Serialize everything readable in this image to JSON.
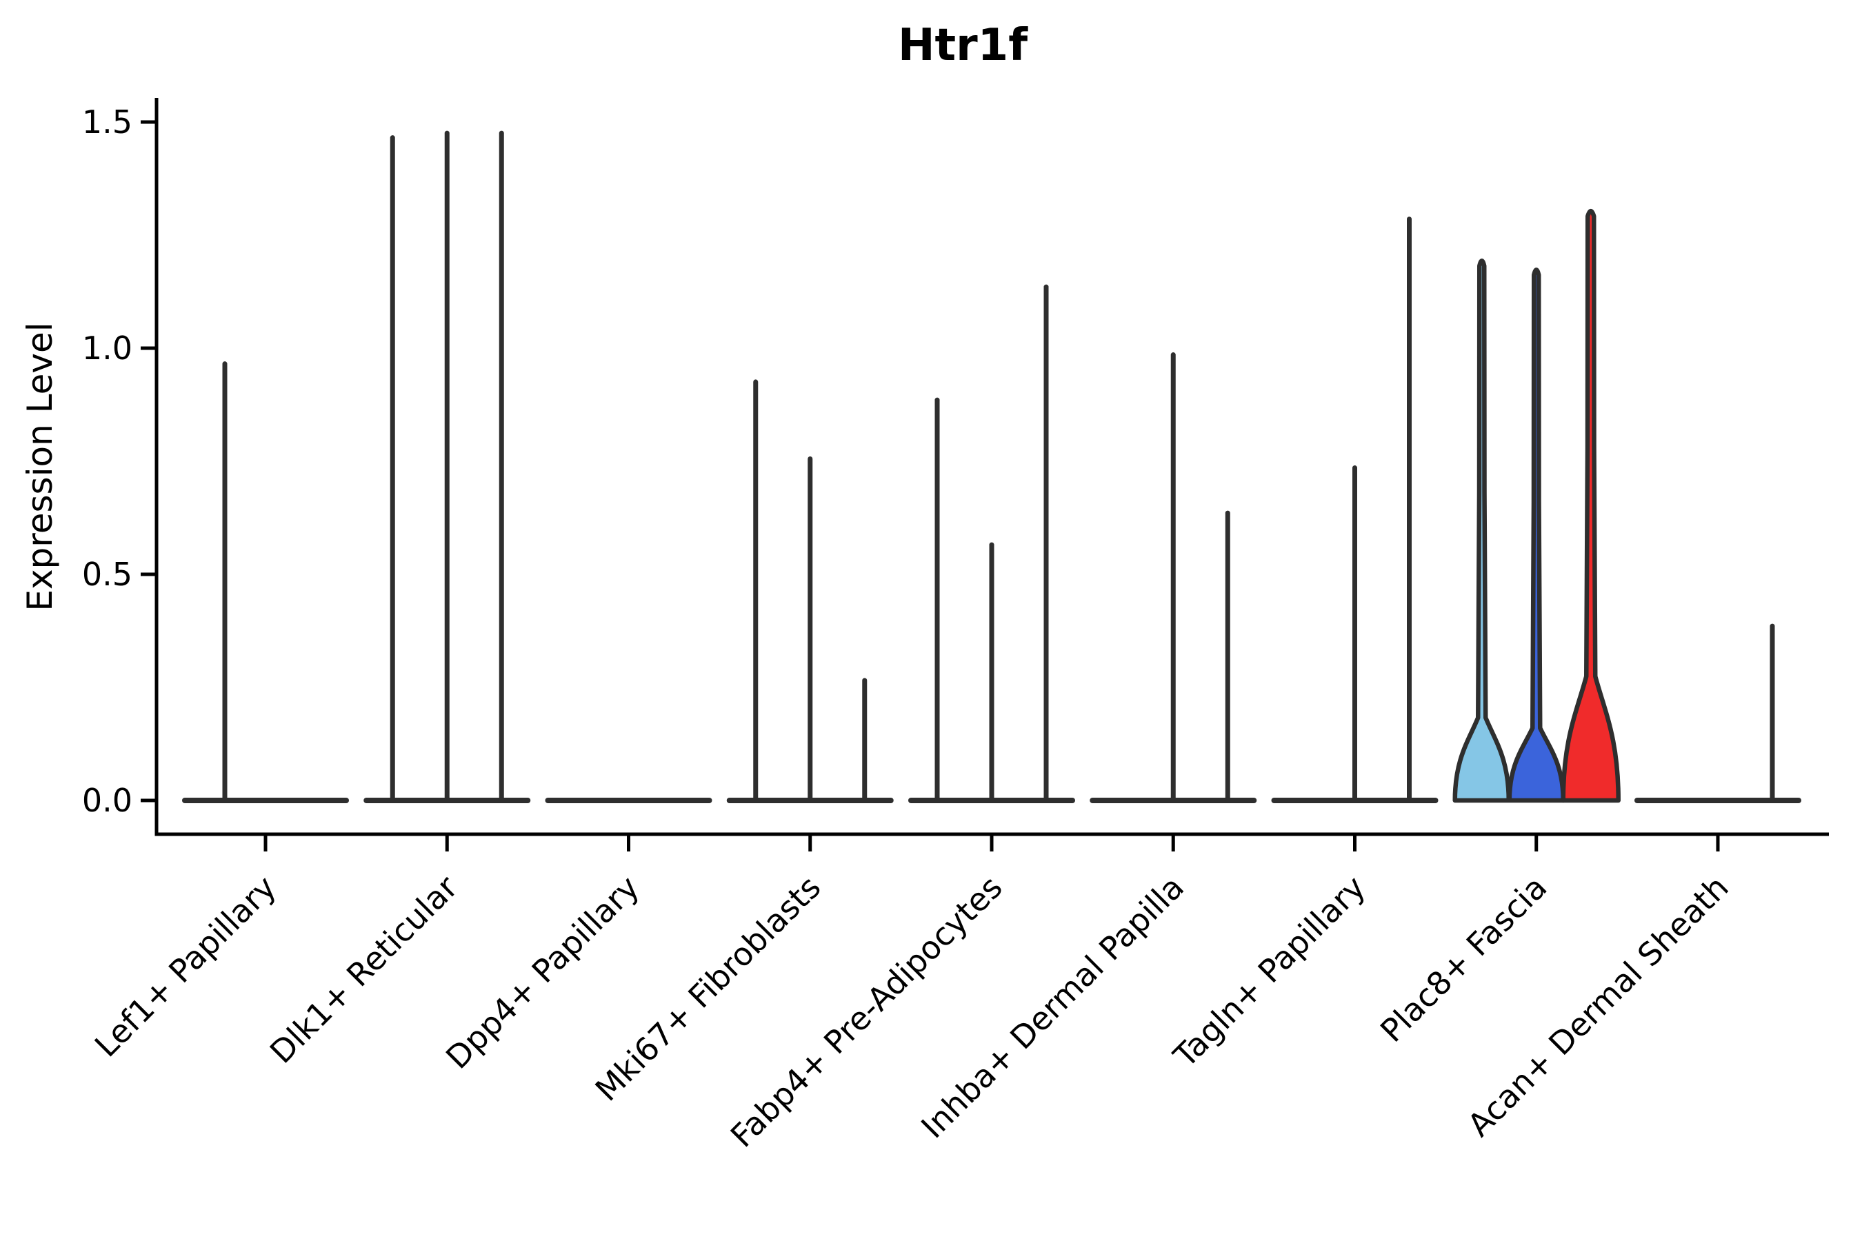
{
  "title": "Htr1f",
  "figure": {
    "background": "#ffffff",
    "axis_color": "#000000",
    "violin_outline_color": "#2e2e2e",
    "tick_label_color": "#000000"
  },
  "chart_data": {
    "type": "violin",
    "title": "Htr1f",
    "xlabel": "",
    "ylabel": "Expression Level",
    "ylim": [
      -0.07,
      1.55
    ],
    "yticks": [
      "0.0",
      "0.5",
      "1.0",
      "1.5"
    ],
    "ytick_values": [
      0.0,
      0.5,
      1.0,
      1.5
    ],
    "grid": "off",
    "legend": "none",
    "categories": [
      "Lef1+ Papillary",
      "Dlk1+ Reticular",
      "Dpp4+ Papillary",
      "Mki67+ Fibroblasts",
      "Fabp4+ Pre-Adipocytes",
      "Inhba+ Dermal Papilla",
      "Tagln+ Papillary",
      "Plac8+ Fascia",
      "Acan+ Dermal Sheath"
    ],
    "series": [
      {
        "category": "Lef1+ Papillary",
        "baseline_halfwidth": 121,
        "spikes": [
          {
            "dx": -59,
            "max_expression": 0.97
          }
        ],
        "colored_violins": []
      },
      {
        "category": "Dlk1+ Reticular",
        "baseline_halfwidth": 121,
        "spikes": [
          {
            "dx": -79,
            "max_expression": 1.47
          },
          {
            "dx": 0,
            "max_expression": 1.48
          },
          {
            "dx": 79,
            "max_expression": 1.48
          }
        ],
        "colored_violins": []
      },
      {
        "category": "Dpp4+ Papillary",
        "baseline_halfwidth": 121,
        "spikes": [],
        "colored_violins": []
      },
      {
        "category": "Mki67+ Fibroblasts",
        "baseline_halfwidth": 121,
        "spikes": [
          {
            "dx": -79,
            "max_expression": 0.93
          },
          {
            "dx": 0,
            "max_expression": 0.76
          },
          {
            "dx": 79,
            "max_expression": 0.27
          }
        ],
        "colored_violins": []
      },
      {
        "category": "Fabp4+ Pre-Adipocytes",
        "baseline_halfwidth": 121,
        "spikes": [
          {
            "dx": -79,
            "max_expression": 0.89
          },
          {
            "dx": 0,
            "max_expression": 0.57
          },
          {
            "dx": 79,
            "max_expression": 1.14
          }
        ],
        "colored_violins": []
      },
      {
        "category": "Inhba+ Dermal Papilla",
        "baseline_halfwidth": 121,
        "spikes": [
          {
            "dx": 0,
            "max_expression": 0.99
          },
          {
            "dx": 79,
            "max_expression": 0.64
          }
        ],
        "colored_violins": []
      },
      {
        "category": "Tagln+ Papillary",
        "baseline_halfwidth": 121,
        "spikes": [
          {
            "dx": 0,
            "max_expression": 0.74
          },
          {
            "dx": 79,
            "max_expression": 1.29
          }
        ],
        "colored_violins": []
      },
      {
        "category": "Plac8+ Fascia",
        "baseline_halfwidth": 121,
        "spikes": [],
        "colored_violins": [
          {
            "dx": -79,
            "max_expression": 1.2,
            "fill": "#85C6E6",
            "bulge_height": 120,
            "base_halfwidth": 39,
            "neck_halfwidth": 3.5
          },
          {
            "dx": 0,
            "max_expression": 1.18,
            "fill": "#3B64DB",
            "bulge_height": 105,
            "base_halfwidth": 39,
            "neck_halfwidth": 3.5
          },
          {
            "dx": 79,
            "max_expression": 1.31,
            "fill": "#F02B2B",
            "bulge_height": 180,
            "base_halfwidth": 40,
            "neck_halfwidth": 4.5
          }
        ]
      },
      {
        "category": "Acan+ Dermal Sheath",
        "baseline_halfwidth": 121,
        "spikes": [
          {
            "dx": 79,
            "max_expression": 0.39
          }
        ],
        "colored_violins": []
      }
    ]
  }
}
